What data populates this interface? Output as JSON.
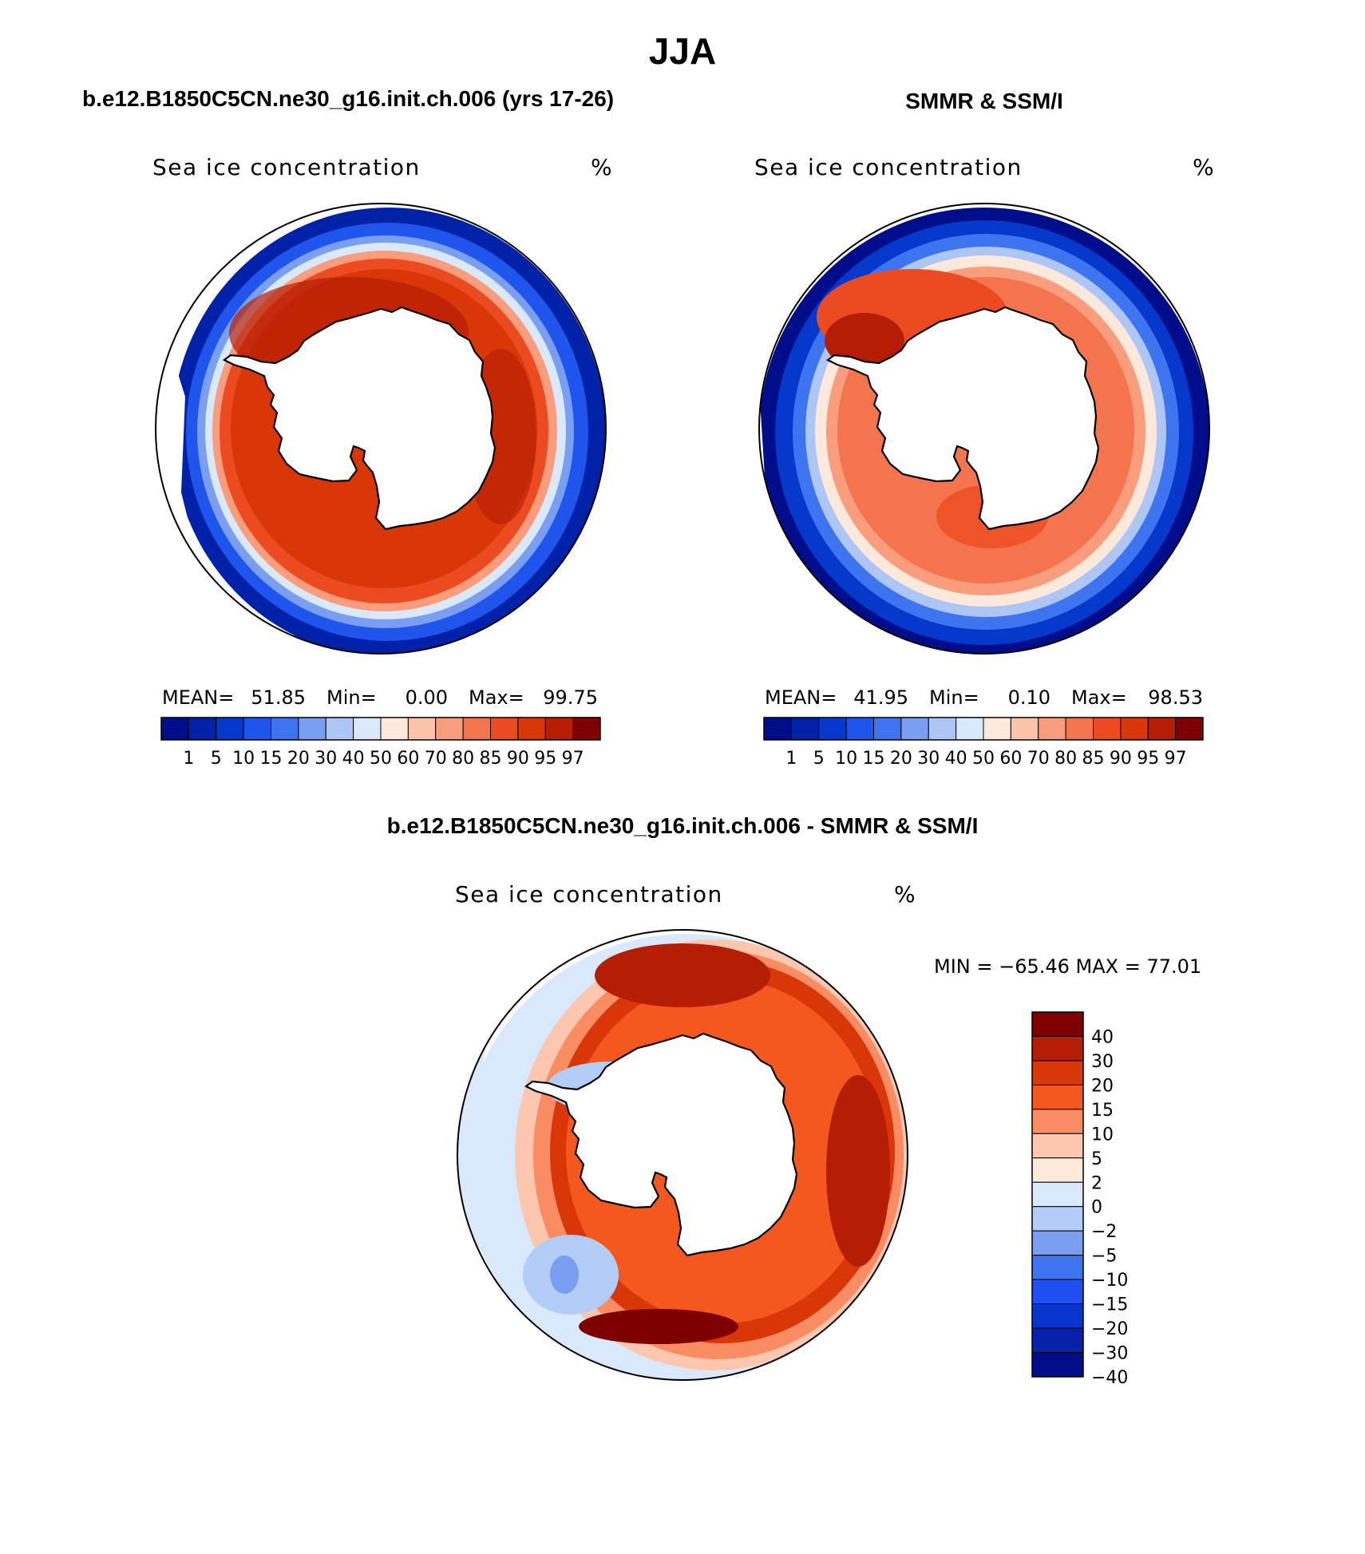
{
  "figure": {
    "season": "JJA",
    "model_title": "b.e12.B1850C5CN.ne30_g16.init.ch.006 (yrs 17-26)",
    "obs_title": "SMMR & SSM/I",
    "diff_title": "b.e12.B1850C5CN.ne30_g16.init.ch.006 - SMMR & SSM/I"
  },
  "panels": {
    "model": {
      "variable": "Sea ice concentration",
      "units": "%",
      "stats": {
        "mean_label": "MEAN=",
        "mean": "51.85",
        "min_label": "Min=",
        "min": "0.00",
        "max_label": "Max=",
        "max": "99.75"
      }
    },
    "obs": {
      "variable": "Sea ice concentration",
      "units": "%",
      "stats": {
        "mean_label": "MEAN=",
        "mean": "41.95",
        "min_label": "Min=",
        "min": "0.10",
        "max_label": "Max=",
        "max": "98.53"
      }
    },
    "diff": {
      "variable": "Sea ice concentration",
      "units": "%",
      "minmax": "MIN = −65.46 MAX =   77.01"
    }
  },
  "colors": {
    "abs_scale": [
      "#000e8c",
      "#0022a8",
      "#0639cb",
      "#1f55ec",
      "#3f74f0",
      "#7a9ef2",
      "#aec6f6",
      "#d9e8fb",
      "#fde9dc",
      "#fcc3ab",
      "#f99d7c",
      "#f4744d",
      "#ec4b21",
      "#d93708",
      "#b51d04",
      "#7f0000"
    ],
    "diff_scale": [
      "#7f0000",
      "#b51d04",
      "#d93708",
      "#f4581e",
      "#f98c62",
      "#fcc6af",
      "#fde9dc",
      "#d9e8fb",
      "#b2cdf7",
      "#7a9ef2",
      "#3f74f0",
      "#1f4ff0",
      "#0a34d0",
      "#0522a8",
      "#000e8c"
    ]
  },
  "chart_data": [
    {
      "type": "heatmap",
      "title": "b.e12.B1850C5CN.ne30_g16.init.ch.006 (yrs 17-26)",
      "projection": "south polar stereographic",
      "variable": "Sea ice concentration",
      "units": "%",
      "colorbar_levels": [
        1,
        5,
        10,
        15,
        20,
        30,
        40,
        50,
        60,
        70,
        80,
        85,
        90,
        95,
        97
      ],
      "mean": 51.85,
      "min": 0.0,
      "max": 99.75
    },
    {
      "type": "heatmap",
      "title": "SMMR & SSM/I",
      "projection": "south polar stereographic",
      "variable": "Sea ice concentration",
      "units": "%",
      "colorbar_levels": [
        1,
        5,
        10,
        15,
        20,
        30,
        40,
        50,
        60,
        70,
        80,
        85,
        90,
        95,
        97
      ],
      "mean": 41.95,
      "min": 0.1,
      "max": 98.53
    },
    {
      "type": "heatmap",
      "title": "b.e12.B1850C5CN.ne30_g16.init.ch.006 - SMMR & SSM/I",
      "projection": "south polar stereographic",
      "variable": "Sea ice concentration",
      "units": "%",
      "colorbar_levels": [
        40,
        30,
        20,
        15,
        10,
        5,
        2,
        0,
        -2,
        -5,
        -10,
        -15,
        -20,
        -30,
        -40
      ],
      "colorbar_labels": [
        "40",
        "30",
        "20",
        "15",
        "10",
        "5",
        "2",
        "0",
        "−2",
        "−5",
        "−10",
        "−15",
        "−20",
        "−30",
        "−40"
      ],
      "min": -65.46,
      "max": 77.01
    }
  ]
}
